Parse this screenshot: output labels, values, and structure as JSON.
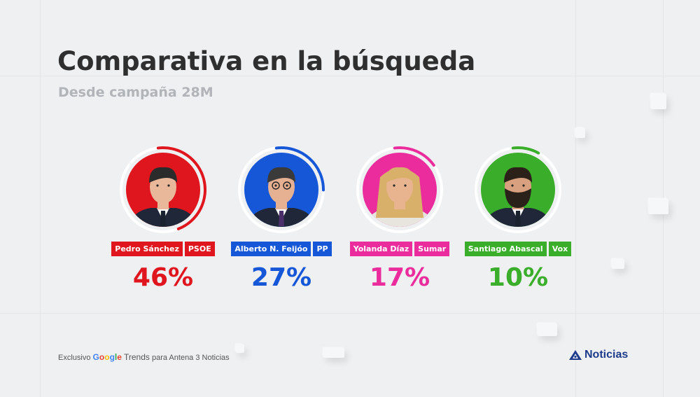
{
  "title": "Comparativa en la búsqueda",
  "subtitle": "Desde campaña 28M",
  "candidates": [
    {
      "name": "Pedro Sánchez",
      "party": "PSOE",
      "percent_label": "46%",
      "share": 46,
      "color": "#e0161f",
      "ring_color": "#e0161f"
    },
    {
      "name": "Alberto N. Feijóo",
      "party": "PP",
      "percent_label": "27%",
      "share": 27,
      "color": "#1657d8",
      "ring_color": "#1657d8"
    },
    {
      "name": "Yolanda Díaz",
      "party": "Sumar",
      "percent_label": "17%",
      "share": 17,
      "color": "#ea2c9c",
      "ring_color": "#ea2c9c"
    },
    {
      "name": "Santiago Abascal",
      "party": "Vox",
      "percent_label": "10%",
      "share": 10,
      "color": "#3aae2a",
      "ring_color": "#3aae2a"
    }
  ],
  "footer": {
    "prefix": "Exclusivo",
    "google": [
      "G",
      "o",
      "o",
      "g",
      "l",
      "e"
    ],
    "trends": "Trends",
    "suffix": "para Antena 3 Noticias"
  },
  "brand": {
    "label": "Noticias",
    "icon": "antena3-logo-icon"
  }
}
